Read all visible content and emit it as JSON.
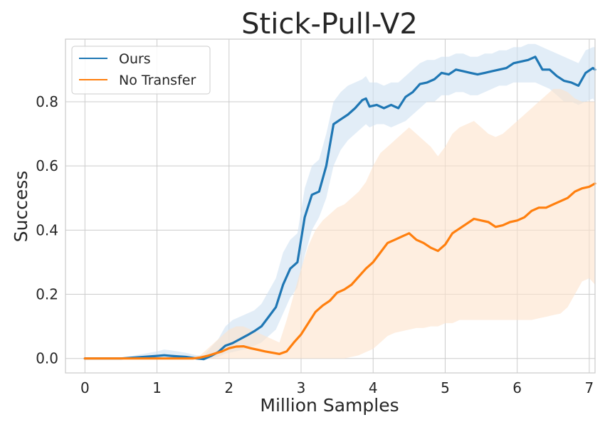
{
  "chart_data": {
    "type": "line",
    "title": "Stick-Pull-V2",
    "xlabel": "Million Samples",
    "ylabel": "Success",
    "xlim": [
      -0.27,
      7.08
    ],
    "ylim": [
      -0.045,
      0.995
    ],
    "xticks": [
      0,
      1,
      2,
      3,
      4,
      5,
      6,
      7
    ],
    "xtick_labels": [
      "0",
      "1",
      "2",
      "3",
      "4",
      "5",
      "6",
      "7"
    ],
    "yticks": [
      0.0,
      0.2,
      0.4,
      0.6,
      0.8
    ],
    "ytick_labels": [
      "0.0",
      "0.2",
      "0.4",
      "0.6",
      "0.8"
    ],
    "grid": true,
    "legend_position": "upper-left",
    "series": [
      {
        "name": "Ours",
        "color": "#1f77b4",
        "band_color": "#cfe1f2",
        "x": [
          0,
          0.5,
          0.7,
          1.0,
          1.1,
          1.2,
          1.4,
          1.55,
          1.65,
          1.75,
          1.85,
          1.95,
          2.05,
          2.15,
          2.25,
          2.35,
          2.45,
          2.55,
          2.65,
          2.75,
          2.85,
          2.95,
          3.05,
          3.15,
          3.25,
          3.35,
          3.45,
          3.55,
          3.65,
          3.75,
          3.85,
          3.9,
          3.95,
          4.05,
          4.15,
          4.25,
          4.35,
          4.45,
          4.55,
          4.65,
          4.75,
          4.85,
          4.95,
          5.05,
          5.15,
          5.25,
          5.35,
          5.45,
          5.55,
          5.65,
          5.75,
          5.85,
          5.95,
          6.05,
          6.15,
          6.25,
          6.35,
          6.45,
          6.55,
          6.65,
          6.75,
          6.85,
          6.95,
          7.05,
          7.08
        ],
        "y": [
          0.0,
          0.0,
          0.003,
          0.008,
          0.01,
          0.008,
          0.005,
          0.0,
          -0.002,
          0.008,
          0.02,
          0.04,
          0.048,
          0.06,
          0.072,
          0.085,
          0.1,
          0.13,
          0.16,
          0.23,
          0.28,
          0.3,
          0.44,
          0.51,
          0.52,
          0.6,
          0.73,
          0.745,
          0.76,
          0.78,
          0.805,
          0.81,
          0.785,
          0.79,
          0.78,
          0.79,
          0.78,
          0.815,
          0.83,
          0.855,
          0.86,
          0.87,
          0.89,
          0.885,
          0.9,
          0.895,
          0.89,
          0.885,
          0.89,
          0.895,
          0.9,
          0.905,
          0.92,
          0.925,
          0.93,
          0.94,
          0.9,
          0.9,
          0.88,
          0.865,
          0.86,
          0.85,
          0.89,
          0.905,
          0.9
        ],
        "lower": [
          0.0,
          0.0,
          0.0,
          0.0,
          0.0,
          0.0,
          0.0,
          -0.002,
          -0.005,
          0.0,
          0.005,
          0.015,
          0.02,
          0.025,
          0.03,
          0.04,
          0.05,
          0.07,
          0.09,
          0.14,
          0.19,
          0.22,
          0.32,
          0.4,
          0.44,
          0.5,
          0.6,
          0.65,
          0.68,
          0.7,
          0.72,
          0.73,
          0.72,
          0.73,
          0.73,
          0.72,
          0.73,
          0.74,
          0.76,
          0.78,
          0.8,
          0.8,
          0.82,
          0.82,
          0.83,
          0.83,
          0.82,
          0.82,
          0.83,
          0.84,
          0.85,
          0.85,
          0.86,
          0.86,
          0.86,
          0.86,
          0.85,
          0.84,
          0.82,
          0.8,
          0.8,
          0.79,
          0.8,
          0.81,
          0.8
        ],
        "upper": [
          0.0,
          0.002,
          0.01,
          0.022,
          0.028,
          0.025,
          0.018,
          0.01,
          0.01,
          0.035,
          0.06,
          0.1,
          0.12,
          0.13,
          0.14,
          0.15,
          0.17,
          0.21,
          0.25,
          0.33,
          0.37,
          0.39,
          0.53,
          0.6,
          0.62,
          0.7,
          0.8,
          0.83,
          0.85,
          0.86,
          0.87,
          0.88,
          0.86,
          0.86,
          0.85,
          0.86,
          0.86,
          0.88,
          0.9,
          0.92,
          0.93,
          0.93,
          0.94,
          0.94,
          0.95,
          0.95,
          0.94,
          0.94,
          0.95,
          0.95,
          0.96,
          0.96,
          0.97,
          0.97,
          0.98,
          0.98,
          0.97,
          0.96,
          0.95,
          0.94,
          0.93,
          0.92,
          0.96,
          0.97,
          0.97
        ]
      },
      {
        "name": "No Transfer",
        "color": "#ff7f0e",
        "band_color": "#fde3cc",
        "x": [
          0,
          0.5,
          1.0,
          1.5,
          1.6,
          1.7,
          1.8,
          1.9,
          2.0,
          2.1,
          2.2,
          2.3,
          2.4,
          2.5,
          2.6,
          2.7,
          2.8,
          2.9,
          3.0,
          3.1,
          3.2,
          3.3,
          3.4,
          3.5,
          3.6,
          3.7,
          3.8,
          3.9,
          4.0,
          4.1,
          4.2,
          4.3,
          4.4,
          4.5,
          4.6,
          4.7,
          4.8,
          4.9,
          5.0,
          5.1,
          5.2,
          5.3,
          5.4,
          5.5,
          5.6,
          5.7,
          5.8,
          5.9,
          6.0,
          6.1,
          6.2,
          6.3,
          6.4,
          6.5,
          6.6,
          6.7,
          6.8,
          6.9,
          7.0,
          7.08
        ],
        "y": [
          0.0,
          0.0,
          0.0,
          0.0,
          0.003,
          0.008,
          0.015,
          0.022,
          0.032,
          0.037,
          0.038,
          0.032,
          0.027,
          0.022,
          0.018,
          0.014,
          0.022,
          0.05,
          0.075,
          0.11,
          0.145,
          0.165,
          0.18,
          0.205,
          0.215,
          0.23,
          0.255,
          0.28,
          0.3,
          0.33,
          0.36,
          0.37,
          0.38,
          0.39,
          0.37,
          0.36,
          0.345,
          0.335,
          0.355,
          0.39,
          0.405,
          0.42,
          0.435,
          0.43,
          0.425,
          0.41,
          0.415,
          0.425,
          0.43,
          0.44,
          0.46,
          0.47,
          0.47,
          0.48,
          0.49,
          0.5,
          0.52,
          0.53,
          0.535,
          0.545
        ],
        "lower": [
          0.0,
          0.0,
          0.0,
          0.0,
          0.0,
          0.0,
          0.0,
          0.0,
          0.0,
          0.0,
          0.0,
          0.0,
          0.0,
          0.0,
          0.0,
          0.0,
          0.0,
          0.0,
          0.0,
          0.0,
          0.0,
          0.0,
          0.0,
          0.0,
          0.0,
          0.005,
          0.01,
          0.02,
          0.03,
          0.05,
          0.07,
          0.08,
          0.085,
          0.09,
          0.095,
          0.095,
          0.1,
          0.1,
          0.11,
          0.11,
          0.12,
          0.12,
          0.12,
          0.12,
          0.12,
          0.12,
          0.12,
          0.12,
          0.12,
          0.12,
          0.12,
          0.125,
          0.13,
          0.135,
          0.14,
          0.16,
          0.2,
          0.24,
          0.25,
          0.23
        ],
        "upper": [
          0.0,
          0.0,
          0.0,
          0.002,
          0.01,
          0.03,
          0.05,
          0.07,
          0.09,
          0.1,
          0.1,
          0.09,
          0.08,
          0.07,
          0.06,
          0.05,
          0.12,
          0.2,
          0.28,
          0.35,
          0.4,
          0.43,
          0.45,
          0.47,
          0.48,
          0.5,
          0.52,
          0.55,
          0.6,
          0.64,
          0.66,
          0.68,
          0.7,
          0.72,
          0.7,
          0.68,
          0.66,
          0.63,
          0.66,
          0.7,
          0.72,
          0.73,
          0.74,
          0.72,
          0.7,
          0.69,
          0.7,
          0.72,
          0.74,
          0.76,
          0.78,
          0.8,
          0.82,
          0.84,
          0.84,
          0.83,
          0.81,
          0.8,
          0.8,
          0.8
        ]
      }
    ]
  }
}
